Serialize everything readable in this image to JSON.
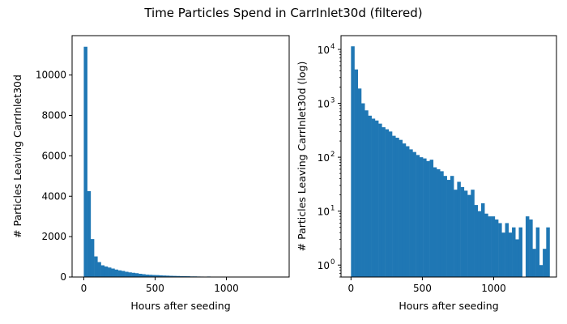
{
  "figure": {
    "suptitle": "Time Particles Spend in CarrInlet30d (filtered)"
  },
  "chart_data": [
    {
      "type": "bar",
      "title": "",
      "xlabel": "Hours after seeding",
      "ylabel": "# Particles Leaving CarrInlet30d",
      "yscale": "linear",
      "grid": false,
      "color": "#1f77b4",
      "bin_width": 24,
      "bin_start": 0,
      "xlim": [
        -82,
        1440
      ],
      "ylim": [
        0,
        11950
      ],
      "xticks": [
        0,
        500,
        1000
      ],
      "xtick_labels": [
        "0",
        "500",
        "1000"
      ],
      "yticks": [
        0,
        2000,
        4000,
        6000,
        8000,
        10000
      ],
      "ytick_labels": [
        "0",
        "2000",
        "4000",
        "6000",
        "8000",
        "10000"
      ],
      "values": [
        11400,
        4250,
        1880,
        1020,
        740,
        580,
        520,
        470,
        420,
        370,
        330,
        300,
        260,
        230,
        210,
        190,
        160,
        140,
        120,
        110,
        100,
        95,
        85,
        75,
        68,
        60,
        55,
        50,
        45,
        40,
        38,
        30,
        30,
        25,
        22,
        20,
        25,
        18,
        14,
        12,
        9,
        8,
        7,
        6,
        5,
        5,
        4,
        4,
        3,
        3,
        0,
        0,
        0,
        0,
        0,
        0,
        0
      ]
    },
    {
      "type": "bar",
      "title": "",
      "xlabel": "Hours after seeding",
      "ylabel": "# Particles Leaving CarrInlet30d (log)",
      "yscale": "log",
      "grid": false,
      "color": "#1f77b4",
      "bin_width": 24,
      "bin_start": 0,
      "xlim": [
        -70,
        1440
      ],
      "ylim": [
        0.6,
        18000
      ],
      "xticks": [
        0,
        500,
        1000
      ],
      "xtick_labels": [
        "0",
        "500",
        "1000"
      ],
      "yticks": [
        1,
        10,
        100,
        1000,
        10000
      ],
      "ytick_labels": [
        [
          "10",
          "0"
        ],
        [
          "10",
          "1"
        ],
        [
          "10",
          "2"
        ],
        [
          "10",
          "3"
        ],
        [
          "10",
          "4"
        ]
      ],
      "values": [
        11400,
        4250,
        1880,
        1000,
        740,
        590,
        520,
        480,
        420,
        360,
        330,
        300,
        250,
        230,
        210,
        180,
        160,
        140,
        125,
        110,
        100,
        95,
        85,
        90,
        65,
        60,
        55,
        45,
        38,
        45,
        25,
        35,
        28,
        24,
        20,
        25,
        13,
        10,
        14,
        9,
        8,
        8,
        7,
        6,
        4,
        6,
        4,
        5,
        3,
        5,
        0,
        8,
        7,
        2,
        5,
        1,
        2,
        5
      ]
    }
  ]
}
